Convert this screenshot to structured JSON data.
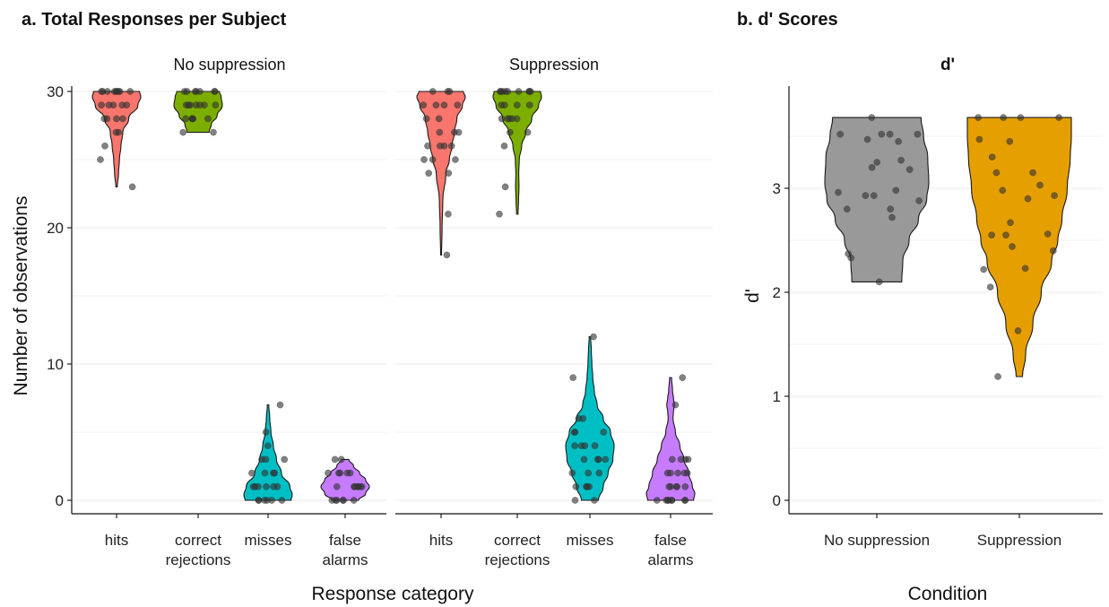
{
  "colors": {
    "hits": "#F8766D",
    "correct_rejections": "#7CAE00",
    "misses": "#00BFC4",
    "false_alarms": "#C77CFF",
    "no_suppression": "#999999",
    "suppression": "#E69F00",
    "points": "#333333",
    "gridline": "#ebebeb"
  },
  "chart_data": [
    {
      "type": "violin",
      "title": "a. Total Responses per Subject",
      "xlabel": "Response category",
      "ylabel": "Number of observations",
      "ylim": [
        0,
        30
      ],
      "yticks": [
        "0",
        "10",
        "20",
        "30"
      ],
      "categories": [
        "hits",
        "correct rejections",
        "misses",
        "false alarms"
      ],
      "category_lines": [
        [
          "hits"
        ],
        [
          "correct",
          "rejections"
        ],
        [
          "misses"
        ],
        [
          "false",
          "alarms"
        ]
      ],
      "grid": "horizontal",
      "facets": [
        {
          "name": "No suppression",
          "violins": [
            {
              "category": "hits",
              "range": [
                23,
                30
              ],
              "profile": [
                [
                  23,
                  0.03
                ],
                [
                  24,
                  0.08
                ],
                [
                  25,
                  0.12
                ],
                [
                  26,
                  0.18
                ],
                [
                  27,
                  0.26
                ],
                [
                  28,
                  0.5
                ],
                [
                  29,
                  0.88
                ],
                [
                  29.6,
                  1.0
                ],
                [
                  30,
                  0.95
                ]
              ],
              "points": [
                30,
                30,
                30,
                30,
                30,
                30,
                30,
                30,
                30,
                29,
                29,
                29,
                29,
                29,
                28,
                28,
                28,
                28,
                27,
                27,
                26,
                25,
                23
              ]
            },
            {
              "category": "correct rejections",
              "range": [
                27,
                30
              ],
              "profile": [
                [
                  27,
                  0.45
                ],
                [
                  27.6,
                  0.55
                ],
                [
                  28.2,
                  0.78
                ],
                [
                  29,
                  1.0
                ],
                [
                  29.6,
                  0.95
                ],
                [
                  30,
                  0.88
                ]
              ],
              "points": [
                30,
                30,
                30,
                30,
                30,
                30,
                30,
                29,
                29,
                29,
                29,
                29,
                29,
                29,
                28,
                28,
                28,
                28,
                28,
                27,
                27
              ]
            },
            {
              "category": "misses",
              "range": [
                0,
                7
              ],
              "profile": [
                [
                  0,
                  0.95
                ],
                [
                  0.4,
                  1.0
                ],
                [
                  1,
                  0.9
                ],
                [
                  2,
                  0.55
                ],
                [
                  3,
                  0.35
                ],
                [
                  4,
                  0.22
                ],
                [
                  5,
                  0.12
                ],
                [
                  6,
                  0.07
                ],
                [
                  7,
                  0.03
                ]
              ],
              "points": [
                0,
                0,
                0,
                0,
                0,
                0,
                1,
                1,
                1,
                1,
                1,
                1,
                2,
                2,
                2,
                2,
                3,
                3,
                3,
                4,
                5,
                7
              ]
            },
            {
              "category": "false alarms",
              "range": [
                0,
                3
              ],
              "profile": [
                [
                  0,
                  0.55
                ],
                [
                  0.5,
                  0.85
                ],
                [
                  1,
                  1.0
                ],
                [
                  1.5,
                  0.85
                ],
                [
                  2,
                  0.6
                ],
                [
                  2.5,
                  0.35
                ],
                [
                  3,
                  0.15
                ]
              ],
              "points": [
                0,
                0,
                0,
                0,
                0,
                0,
                1,
                1,
                1,
                1,
                1,
                1,
                1,
                2,
                2,
                2,
                2,
                2,
                3,
                3
              ]
            }
          ]
        },
        {
          "name": "Suppression",
          "violins": [
            {
              "category": "hits",
              "range": [
                18,
                30
              ],
              "profile": [
                [
                  18,
                  0.02
                ],
                [
                  20,
                  0.04
                ],
                [
                  22,
                  0.07
                ],
                [
                  24,
                  0.2
                ],
                [
                  25,
                  0.34
                ],
                [
                  26,
                  0.45
                ],
                [
                  27,
                  0.55
                ],
                [
                  28,
                  0.65
                ],
                [
                  29,
                  0.88
                ],
                [
                  29.6,
                  1.0
                ],
                [
                  30,
                  0.92
                ]
              ],
              "points": [
                30,
                30,
                30,
                29,
                29,
                29,
                29,
                28,
                28,
                27,
                27,
                27,
                26,
                26,
                26,
                26,
                25,
                25,
                25,
                24,
                24,
                21,
                18
              ]
            },
            {
              "category": "correct rejections",
              "range": [
                21,
                30
              ],
              "profile": [
                [
                  21,
                  0.03
                ],
                [
                  22,
                  0.05
                ],
                [
                  23,
                  0.07
                ],
                [
                  24,
                  0.06
                ],
                [
                  25,
                  0.08
                ],
                [
                  26,
                  0.18
                ],
                [
                  27,
                  0.35
                ],
                [
                  28,
                  0.6
                ],
                [
                  29,
                  0.88
                ],
                [
                  29.6,
                  1.0
                ],
                [
                  30,
                  0.96
                ]
              ],
              "points": [
                30,
                30,
                30,
                30,
                30,
                30,
                30,
                30,
                30,
                29,
                29,
                29,
                29,
                28,
                28,
                28,
                28,
                28,
                27,
                27,
                26,
                23,
                21
              ]
            },
            {
              "category": "misses",
              "range": [
                0,
                12
              ],
              "profile": [
                [
                  0,
                  0.35
                ],
                [
                  1,
                  0.55
                ],
                [
                  2,
                  0.75
                ],
                [
                  3,
                  0.95
                ],
                [
                  4,
                  1.0
                ],
                [
                  5,
                  0.85
                ],
                [
                  6,
                  0.55
                ],
                [
                  7,
                  0.3
                ],
                [
                  8,
                  0.18
                ],
                [
                  9,
                  0.12
                ],
                [
                  10,
                  0.08
                ],
                [
                  11,
                  0.06
                ],
                [
                  12,
                  0.03
                ]
              ],
              "points": [
                0,
                0,
                1,
                1,
                1,
                1,
                2,
                2,
                2,
                3,
                3,
                3,
                3,
                4,
                4,
                4,
                4,
                5,
                5,
                5,
                6,
                6,
                9,
                12
              ]
            },
            {
              "category": "false alarms",
              "range": [
                0,
                9
              ],
              "profile": [
                [
                  0,
                  0.95
                ],
                [
                  0.5,
                  1.0
                ],
                [
                  1,
                  0.9
                ],
                [
                  2,
                  0.75
                ],
                [
                  3,
                  0.55
                ],
                [
                  4,
                  0.38
                ],
                [
                  5,
                  0.2
                ],
                [
                  6,
                  0.1
                ],
                [
                  6.5,
                  0.12
                ],
                [
                  7,
                  0.16
                ],
                [
                  7.5,
                  0.12
                ],
                [
                  8,
                  0.08
                ],
                [
                  9,
                  0.04
                ]
              ],
              "points": [
                0,
                0,
                0,
                0,
                0,
                0,
                0,
                0,
                1,
                1,
                1,
                1,
                1,
                2,
                2,
                2,
                2,
                2,
                3,
                3,
                3,
                3,
                7,
                9
              ]
            }
          ]
        }
      ]
    },
    {
      "type": "violin",
      "title": "b. d' Scores",
      "subtitle": "d'",
      "xlabel": "Condition",
      "ylabel": "d'",
      "ylim": [
        0,
        3.9
      ],
      "yticks": [
        "0",
        "1",
        "2",
        "3"
      ],
      "categories": [
        "No suppression",
        "Suppression"
      ],
      "grid": "horizontal",
      "violins": [
        {
          "category": "No suppression",
          "range": [
            2.1,
            3.68
          ],
          "profile": [
            [
              2.1,
              0.48
            ],
            [
              2.3,
              0.5
            ],
            [
              2.5,
              0.62
            ],
            [
              2.7,
              0.8
            ],
            [
              2.9,
              0.96
            ],
            [
              3.05,
              1.0
            ],
            [
              3.3,
              0.98
            ],
            [
              3.5,
              0.9
            ],
            [
              3.68,
              0.85
            ]
          ],
          "points": [
            3.68,
            3.52,
            3.52,
            3.52,
            3.52,
            3.47,
            3.45,
            3.27,
            3.25,
            3.2,
            3.18,
            2.98,
            2.96,
            2.93,
            2.93,
            2.88,
            2.8,
            2.8,
            2.72,
            2.37,
            2.33,
            2.1
          ]
        },
        {
          "category": "Suppression",
          "range": [
            1.19,
            3.68
          ],
          "profile": [
            [
              1.19,
              0.06
            ],
            [
              1.4,
              0.12
            ],
            [
              1.7,
              0.26
            ],
            [
              2.0,
              0.42
            ],
            [
              2.3,
              0.62
            ],
            [
              2.5,
              0.74
            ],
            [
              2.7,
              0.82
            ],
            [
              3.0,
              0.92
            ],
            [
              3.3,
              0.98
            ],
            [
              3.5,
              1.0
            ],
            [
              3.68,
              1.0
            ]
          ],
          "points": [
            3.68,
            3.68,
            3.68,
            3.68,
            3.47,
            3.45,
            3.3,
            3.15,
            3.15,
            3.03,
            2.98,
            2.93,
            2.9,
            2.67,
            2.56,
            2.55,
            2.55,
            2.44,
            2.4,
            2.23,
            2.22,
            2.05,
            1.63,
            1.19
          ]
        }
      ]
    }
  ]
}
